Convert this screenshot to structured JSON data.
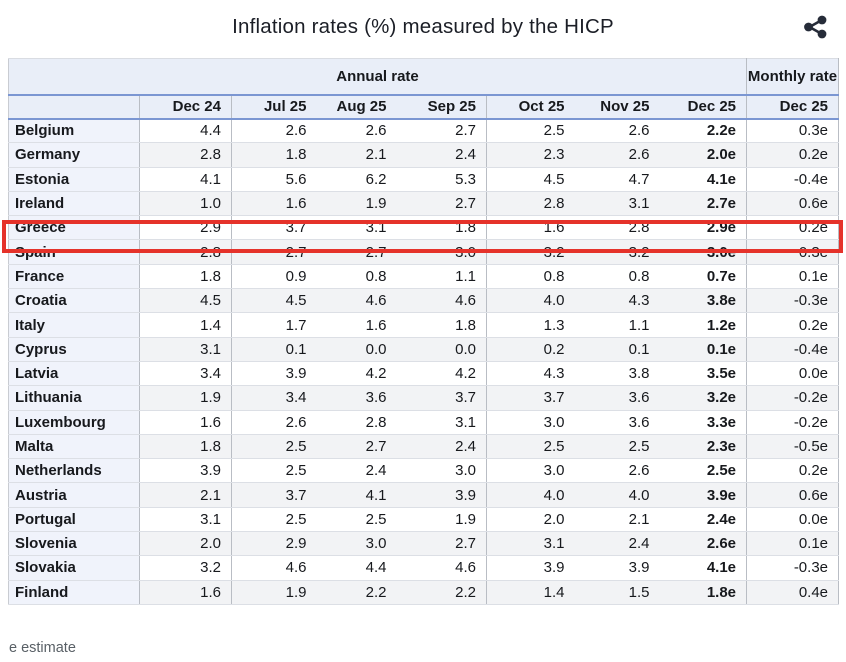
{
  "title": "Inflation rates (%) measured by the HICP",
  "header": {
    "share_icon": "share-icon"
  },
  "chart_data": {
    "type": "table",
    "title": "Inflation rates (%) measured by the HICP",
    "group_headers": {
      "annual": "Annual rate",
      "monthly": "Monthly rate"
    },
    "annual_columns": [
      "Dec 24",
      "Jul 25",
      "Aug 25",
      "Sep 25",
      "Oct 25",
      "Nov 25",
      "Dec 25"
    ],
    "monthly_column": "Dec 25",
    "rows": [
      {
        "country": "Belgium",
        "annual": [
          "4.4",
          "2.6",
          "2.6",
          "2.7",
          "2.5",
          "2.6",
          "2.2e"
        ],
        "monthly": "0.3e"
      },
      {
        "country": "Germany",
        "annual": [
          "2.8",
          "1.8",
          "2.1",
          "2.4",
          "2.3",
          "2.6",
          "2.0e"
        ],
        "monthly": "0.2e"
      },
      {
        "country": "Estonia",
        "annual": [
          "4.1",
          "5.6",
          "6.2",
          "5.3",
          "4.5",
          "4.7",
          "4.1e"
        ],
        "monthly": "-0.4e"
      },
      {
        "country": "Ireland",
        "annual": [
          "1.0",
          "1.6",
          "1.9",
          "2.7",
          "2.8",
          "3.1",
          "2.7e"
        ],
        "monthly": "0.6e"
      },
      {
        "country": "Greece",
        "annual": [
          "2.9",
          "3.7",
          "3.1",
          "1.8",
          "1.6",
          "2.8",
          "2.9e"
        ],
        "monthly": "0.2e"
      },
      {
        "country": "Spain",
        "annual": [
          "2.8",
          "2.7",
          "2.7",
          "3.0",
          "3.2",
          "3.2",
          "3.0e"
        ],
        "monthly": "0.3e"
      },
      {
        "country": "France",
        "annual": [
          "1.8",
          "0.9",
          "0.8",
          "1.1",
          "0.8",
          "0.8",
          "0.7e"
        ],
        "monthly": "0.1e"
      },
      {
        "country": "Croatia",
        "annual": [
          "4.5",
          "4.5",
          "4.6",
          "4.6",
          "4.0",
          "4.3",
          "3.8e"
        ],
        "monthly": "-0.3e"
      },
      {
        "country": "Italy",
        "annual": [
          "1.4",
          "1.7",
          "1.6",
          "1.8",
          "1.3",
          "1.1",
          "1.2e"
        ],
        "monthly": "0.2e"
      },
      {
        "country": "Cyprus",
        "annual": [
          "3.1",
          "0.1",
          "0.0",
          "0.0",
          "0.2",
          "0.1",
          "0.1e"
        ],
        "monthly": "-0.4e"
      },
      {
        "country": "Latvia",
        "annual": [
          "3.4",
          "3.9",
          "4.2",
          "4.2",
          "4.3",
          "3.8",
          "3.5e"
        ],
        "monthly": "0.0e"
      },
      {
        "country": "Lithuania",
        "annual": [
          "1.9",
          "3.4",
          "3.6",
          "3.7",
          "3.7",
          "3.6",
          "3.2e"
        ],
        "monthly": "-0.2e"
      },
      {
        "country": "Luxembourg",
        "annual": [
          "1.6",
          "2.6",
          "2.8",
          "3.1",
          "3.0",
          "3.6",
          "3.3e"
        ],
        "monthly": "-0.2e"
      },
      {
        "country": "Malta",
        "annual": [
          "1.8",
          "2.5",
          "2.7",
          "2.4",
          "2.5",
          "2.5",
          "2.3e"
        ],
        "monthly": "-0.5e"
      },
      {
        "country": "Netherlands",
        "annual": [
          "3.9",
          "2.5",
          "2.4",
          "3.0",
          "3.0",
          "2.6",
          "2.5e"
        ],
        "monthly": "0.2e"
      },
      {
        "country": "Austria",
        "annual": [
          "2.1",
          "3.7",
          "4.1",
          "3.9",
          "4.0",
          "4.0",
          "3.9e"
        ],
        "monthly": "0.6e"
      },
      {
        "country": "Portugal",
        "annual": [
          "3.1",
          "2.5",
          "2.5",
          "1.9",
          "2.0",
          "2.1",
          "2.4e"
        ],
        "monthly": "0.0e"
      },
      {
        "country": "Slovenia",
        "annual": [
          "2.0",
          "2.9",
          "3.0",
          "2.7",
          "3.1",
          "2.4",
          "2.6e"
        ],
        "monthly": "0.1e"
      },
      {
        "country": "Slovakia",
        "annual": [
          "3.2",
          "4.6",
          "4.4",
          "4.6",
          "3.9",
          "3.9",
          "4.1e"
        ],
        "monthly": "-0.3e"
      },
      {
        "country": "Finland",
        "annual": [
          "1.6",
          "1.9",
          "2.2",
          "2.2",
          "1.4",
          "1.5",
          "1.8e"
        ],
        "monthly": "0.4e"
      }
    ],
    "highlighted_row": "Greece",
    "footnote": "e estimate"
  },
  "colors": {
    "accent_blue": "#7b96d2",
    "header_bg": "#e9eef8",
    "stripe_gray": "#f2f3f5",
    "country_cell_bg": "#f0f3fb",
    "highlight_red": "#e5322a"
  }
}
